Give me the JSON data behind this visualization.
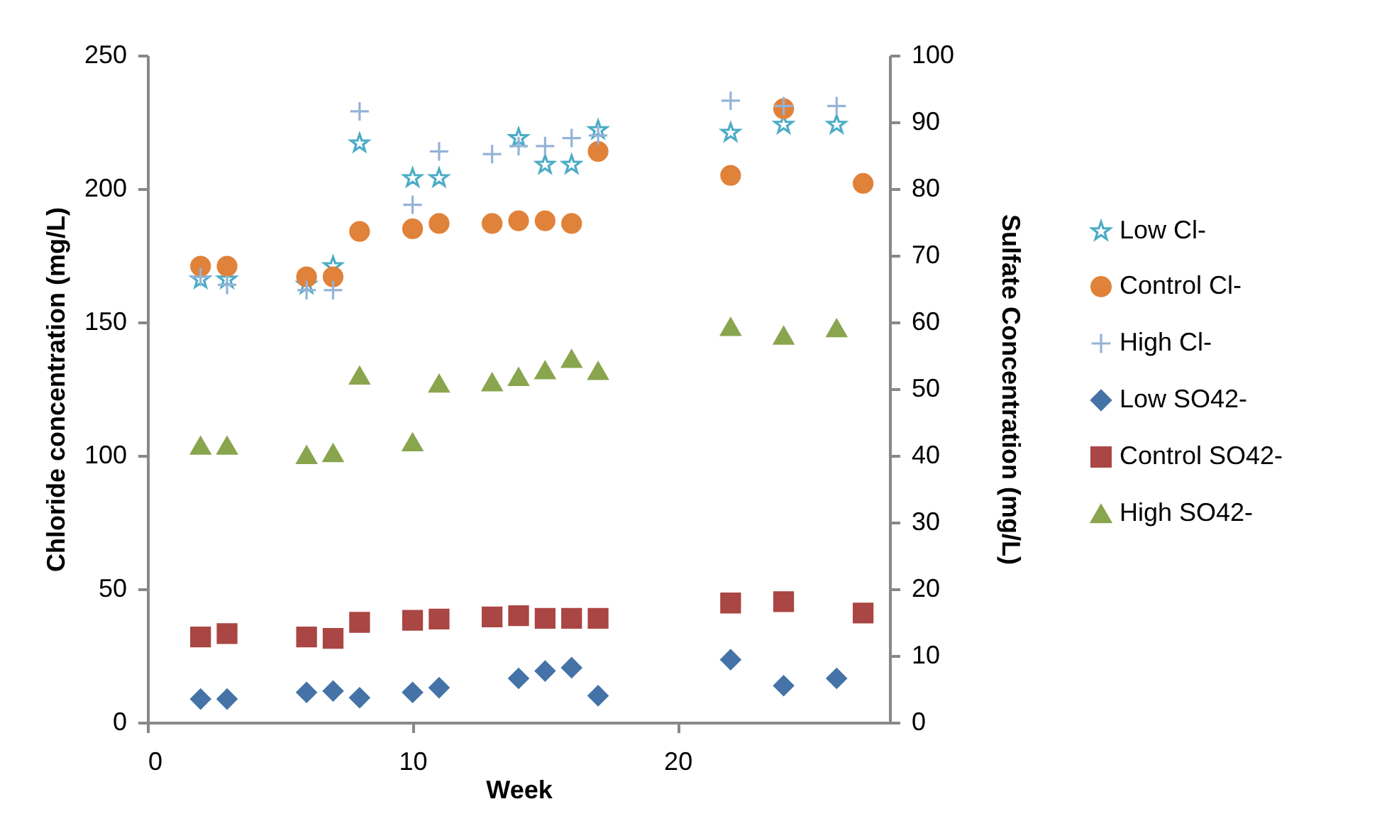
{
  "chart_data": {
    "type": "scatter",
    "xlabel": "Week",
    "ylabel": "Chloride concentration (mg/L)",
    "y2label": "Sulfate Concentration (mg/L)",
    "xlim": [
      0,
      28
    ],
    "xticks": [
      0,
      10,
      20
    ],
    "ylim": [
      0,
      250
    ],
    "yticks": [
      0,
      50,
      100,
      150,
      200,
      250
    ],
    "y2lim": [
      0,
      100
    ],
    "y2ticks": [
      0,
      10,
      20,
      30,
      40,
      50,
      60,
      70,
      80,
      90,
      100
    ],
    "grid": false,
    "legend": "right",
    "series": [
      {
        "name": "Low Cl-",
        "color": "#4bacc6",
        "marker": "star",
        "x": [
          2,
          3,
          6,
          7,
          8,
          10,
          11,
          14,
          15,
          16,
          17,
          22,
          24,
          26
        ],
        "values": [
          166,
          166,
          164,
          171,
          217,
          204,
          204,
          219,
          209,
          209,
          222,
          221,
          224,
          224
        ]
      },
      {
        "name": "Control Cl-",
        "color": "#e0823a",
        "marker": "circle",
        "x": [
          2,
          3,
          6,
          7,
          8,
          10,
          11,
          13,
          14,
          15,
          16,
          17,
          22,
          24,
          27
        ],
        "values": [
          171,
          171,
          167,
          167,
          184,
          185,
          187,
          187,
          188,
          188,
          187,
          214,
          205,
          230,
          202
        ]
      },
      {
        "name": "High Cl-",
        "color": "#95b3d7",
        "marker": "cross",
        "x": [
          2,
          3,
          6,
          7,
          8,
          10,
          11,
          13,
          14,
          15,
          16,
          17,
          22,
          24,
          26
        ],
        "values": [
          167,
          164,
          162,
          162,
          229,
          194,
          214,
          213,
          216,
          216,
          219,
          220,
          233,
          231,
          231
        ]
      },
      {
        "name": "Low SO42-",
        "color": "#4573a7",
        "marker": "diamond",
        "axis": "y2",
        "x": [
          2,
          3,
          6,
          7,
          8,
          10,
          11,
          14,
          15,
          16,
          17,
          22,
          24,
          26
        ],
        "values": [
          3.5,
          3.5,
          4.5,
          4.7,
          3.7,
          4.5,
          5.2,
          6.6,
          7.7,
          8.2,
          4.0,
          9.4,
          5.5,
          6.6
        ]
      },
      {
        "name": "Control SO42-",
        "color": "#aa4643",
        "marker": "square",
        "axis": "y2",
        "x": [
          2,
          3,
          6,
          7,
          8,
          10,
          11,
          13,
          14,
          15,
          16,
          17,
          22,
          24,
          27
        ],
        "values": [
          12.8,
          13.3,
          12.8,
          12.6,
          15.0,
          15.3,
          15.5,
          15.8,
          16.0,
          15.6,
          15.6,
          15.6,
          17.9,
          18.1,
          16.4
        ]
      },
      {
        "name": "High SO42-",
        "color": "#89a54e",
        "marker": "triangle",
        "axis": "y2",
        "x": [
          2,
          3,
          6,
          7,
          8,
          10,
          11,
          13,
          14,
          15,
          16,
          17,
          22,
          24,
          26
        ],
        "values": [
          41.5,
          41.5,
          40.1,
          40.4,
          52.0,
          42.0,
          50.8,
          51.0,
          51.8,
          52.8,
          54.5,
          52.7,
          59.3,
          58.0,
          59.1
        ]
      }
    ]
  }
}
